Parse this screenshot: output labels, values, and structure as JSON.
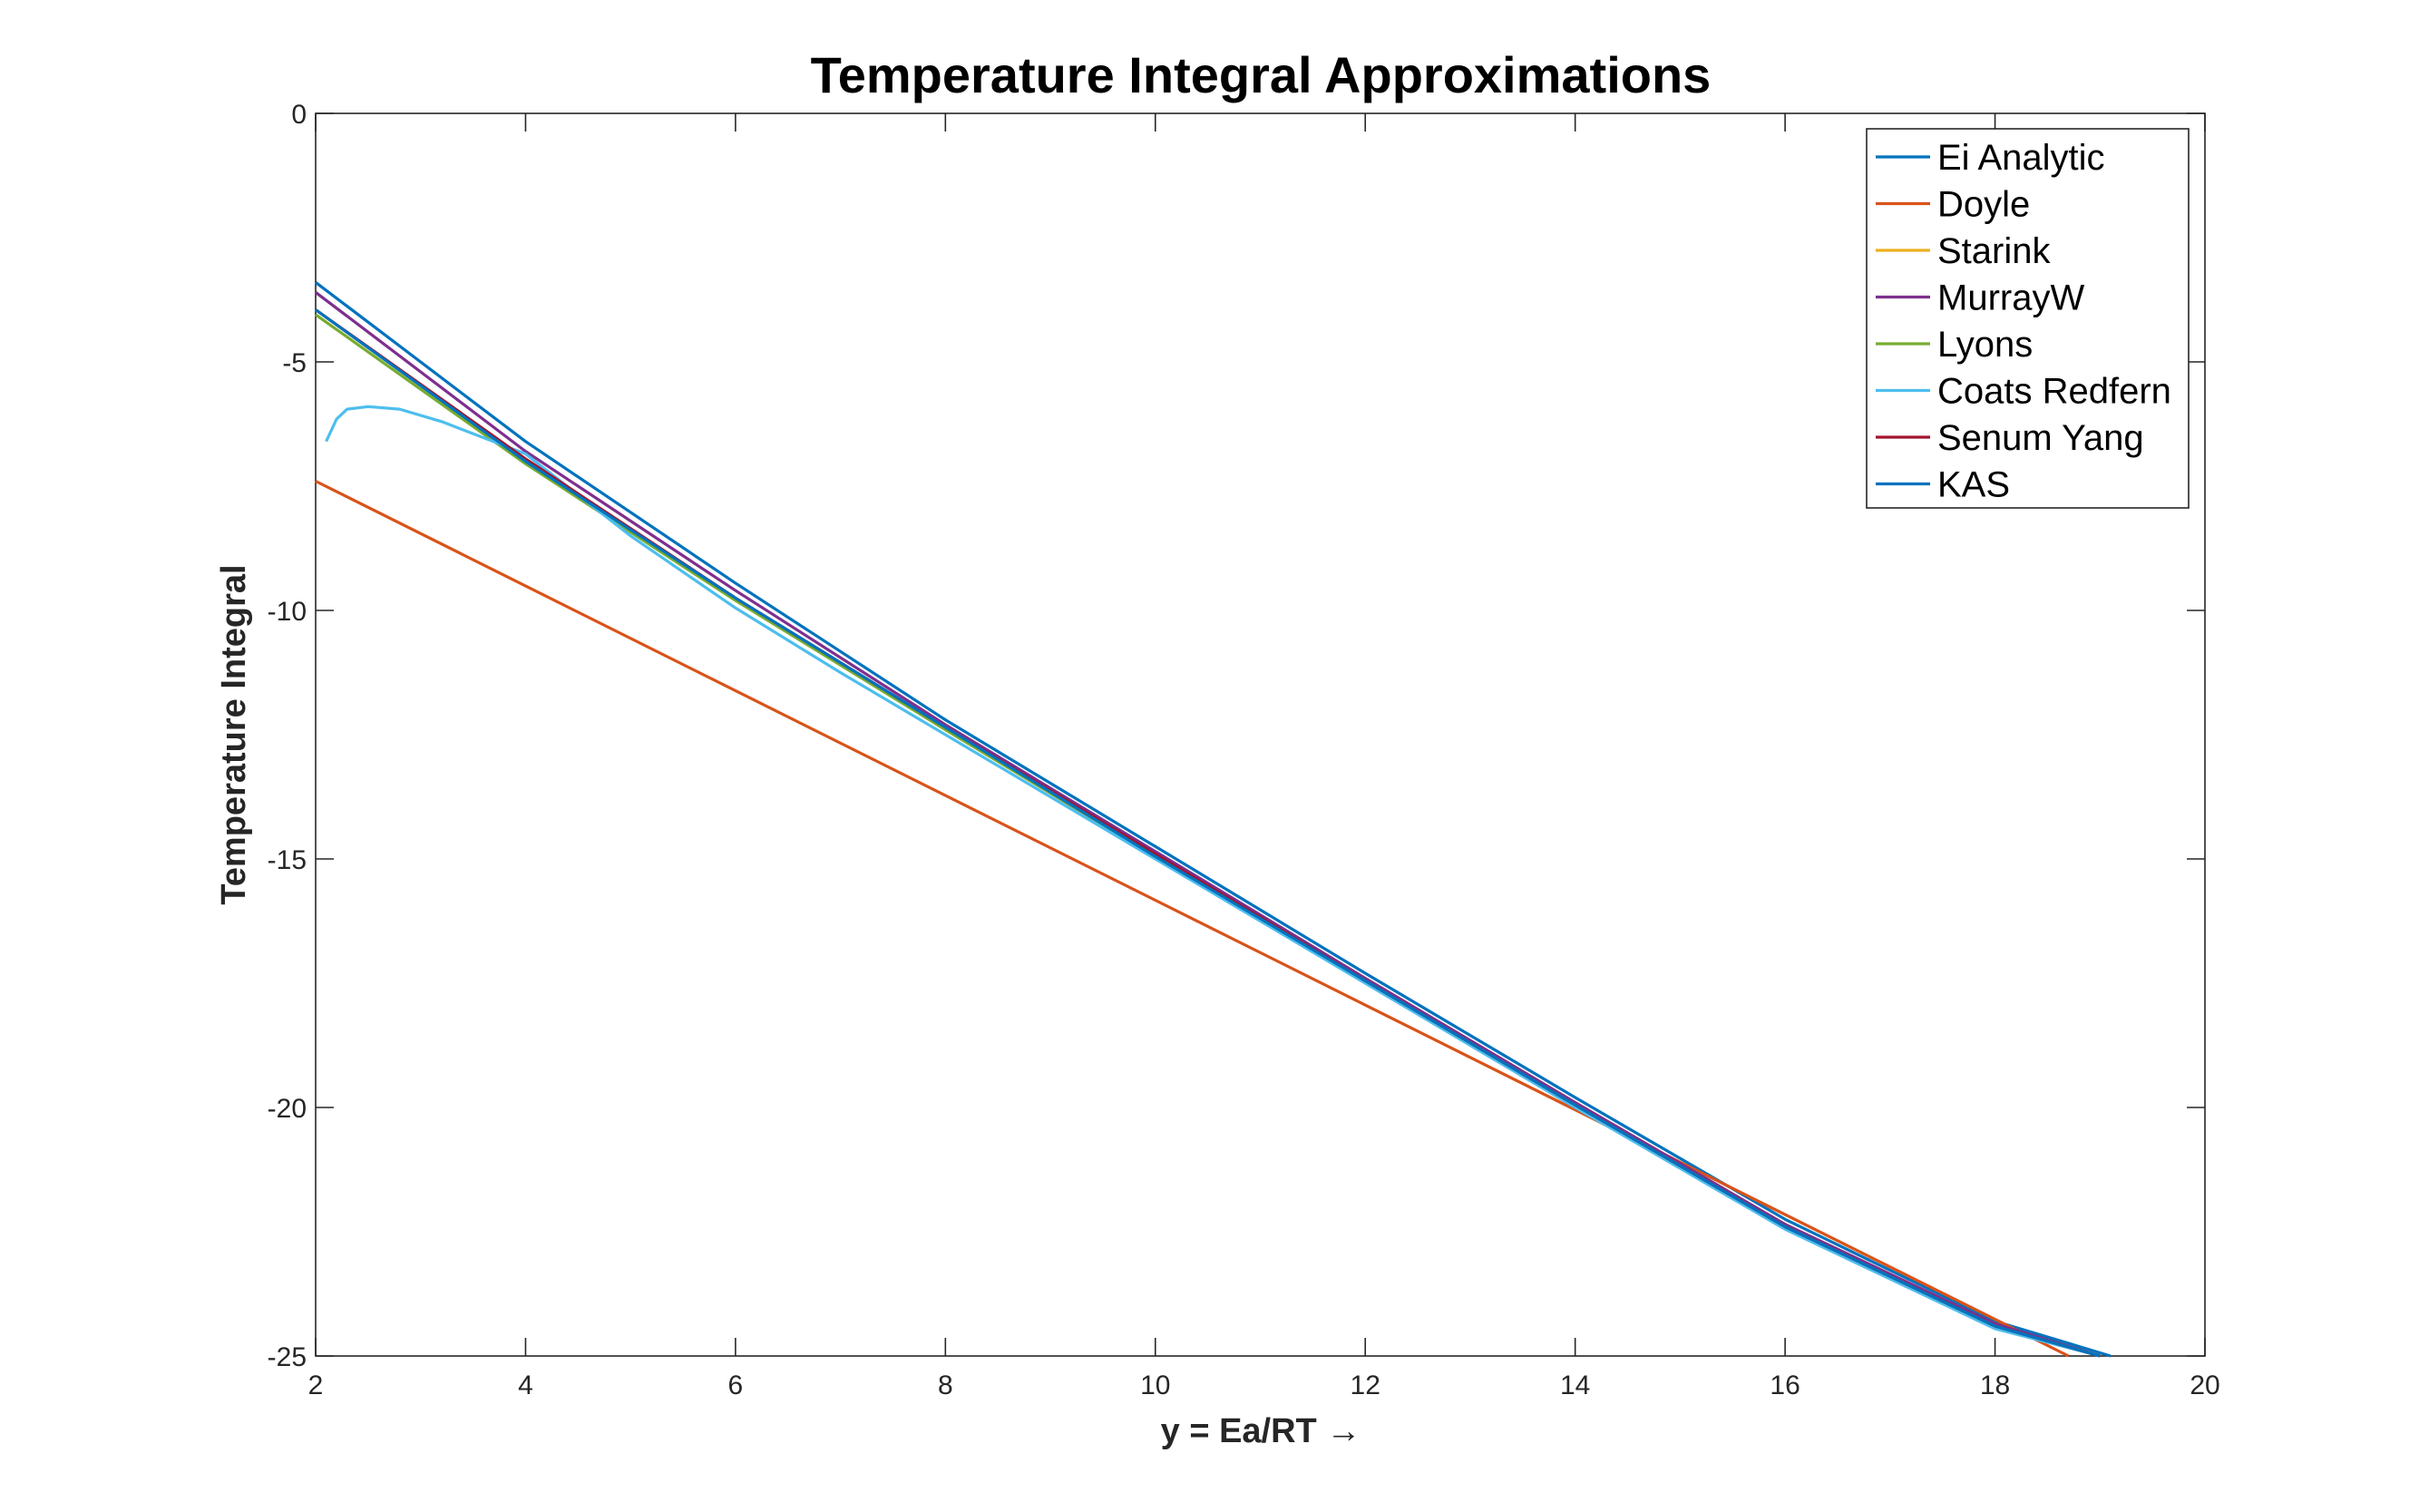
{
  "chart_data": {
    "type": "line",
    "title": "Temperature Integral Approximations",
    "xlabel": "y = Ea/RT →",
    "ylabel": "Temperature Integral",
    "xlim": [
      2,
      20
    ],
    "ylim": [
      -25,
      0
    ],
    "xticks": [
      2,
      4,
      6,
      8,
      10,
      12,
      14,
      16,
      18,
      20
    ],
    "yticks": [
      0,
      -5,
      -10,
      -15,
      -20,
      -25
    ],
    "grid": false,
    "legend_location": "top-right",
    "series": [
      {
        "name": "Ei Analytic",
        "color": "#0072BD",
        "x": [
          2.0,
          4.0,
          6.0,
          8.0,
          10.0,
          12.0,
          14.0,
          16.0,
          18.0,
          19.1
        ],
        "y": [
          -3.4,
          -6.6,
          -9.45,
          -12.2,
          -14.75,
          -17.3,
          -19.8,
          -22.25,
          -24.3,
          -25.0
        ]
      },
      {
        "name": "Doyle",
        "color": "#D95319",
        "x": [
          2.0,
          18.7
        ],
        "y": [
          -7.4,
          -25.0
        ]
      },
      {
        "name": "Starink",
        "color": "#EDB120",
        "x": [
          2.0,
          4.0,
          6.0,
          8.0,
          10.0,
          12.0,
          14.0,
          16.0,
          18.0,
          19.0
        ],
        "y": [
          -3.95,
          -7.0,
          -9.75,
          -12.4,
          -14.95,
          -17.45,
          -19.95,
          -22.4,
          -24.4,
          -25.0
        ]
      },
      {
        "name": "MurrayW",
        "color": "#7E2F8E",
        "x": [
          2.0,
          4.0,
          6.0,
          8.0,
          10.0,
          12.0,
          14.0,
          16.0,
          18.0,
          19.0
        ],
        "y": [
          -3.6,
          -6.8,
          -9.6,
          -12.3,
          -14.85,
          -17.4,
          -19.9,
          -22.35,
          -24.35,
          -25.0
        ]
      },
      {
        "name": "Lyons",
        "color": "#77AC30",
        "x": [
          2.0,
          4.0,
          6.0,
          8.0,
          10.0,
          12.0,
          14.0,
          16.0,
          18.0,
          19.0
        ],
        "y": [
          -4.05,
          -7.05,
          -9.8,
          -12.4,
          -14.95,
          -17.45,
          -19.95,
          -22.4,
          -24.4,
          -25.0
        ]
      },
      {
        "name": "Coats Redfern",
        "color": "#4DBEEE",
        "x": [
          2.1,
          2.2,
          2.3,
          2.5,
          2.8,
          3.2,
          4.0,
          5.0,
          6.0,
          7.0,
          8.0,
          10.0,
          12.0,
          14.0,
          16.0,
          18.0,
          19.0
        ],
        "y": [
          -6.6,
          -6.15,
          -5.95,
          -5.9,
          -5.95,
          -6.2,
          -6.85,
          -8.5,
          -9.95,
          -11.25,
          -12.5,
          -15.0,
          -17.5,
          -20.0,
          -22.45,
          -24.45,
          -25.0
        ]
      },
      {
        "name": "Senum Yang",
        "color": "#A2142F",
        "x": [
          2.0,
          4.0,
          6.0,
          8.0,
          10.0,
          12.0,
          14.0,
          16.0,
          18.0,
          19.0
        ],
        "y": [
          -3.95,
          -6.95,
          -9.75,
          -12.35,
          -14.9,
          -17.45,
          -19.95,
          -22.4,
          -24.4,
          -25.0
        ]
      },
      {
        "name": "KAS",
        "color": "#0072BD",
        "x": [
          2.0,
          4.0,
          6.0,
          8.0,
          10.0,
          12.0,
          14.0,
          16.0,
          18.0,
          19.0
        ],
        "y": [
          -3.95,
          -7.0,
          -9.75,
          -12.35,
          -14.95,
          -17.45,
          -19.95,
          -22.4,
          -24.4,
          -25.0
        ]
      }
    ]
  }
}
